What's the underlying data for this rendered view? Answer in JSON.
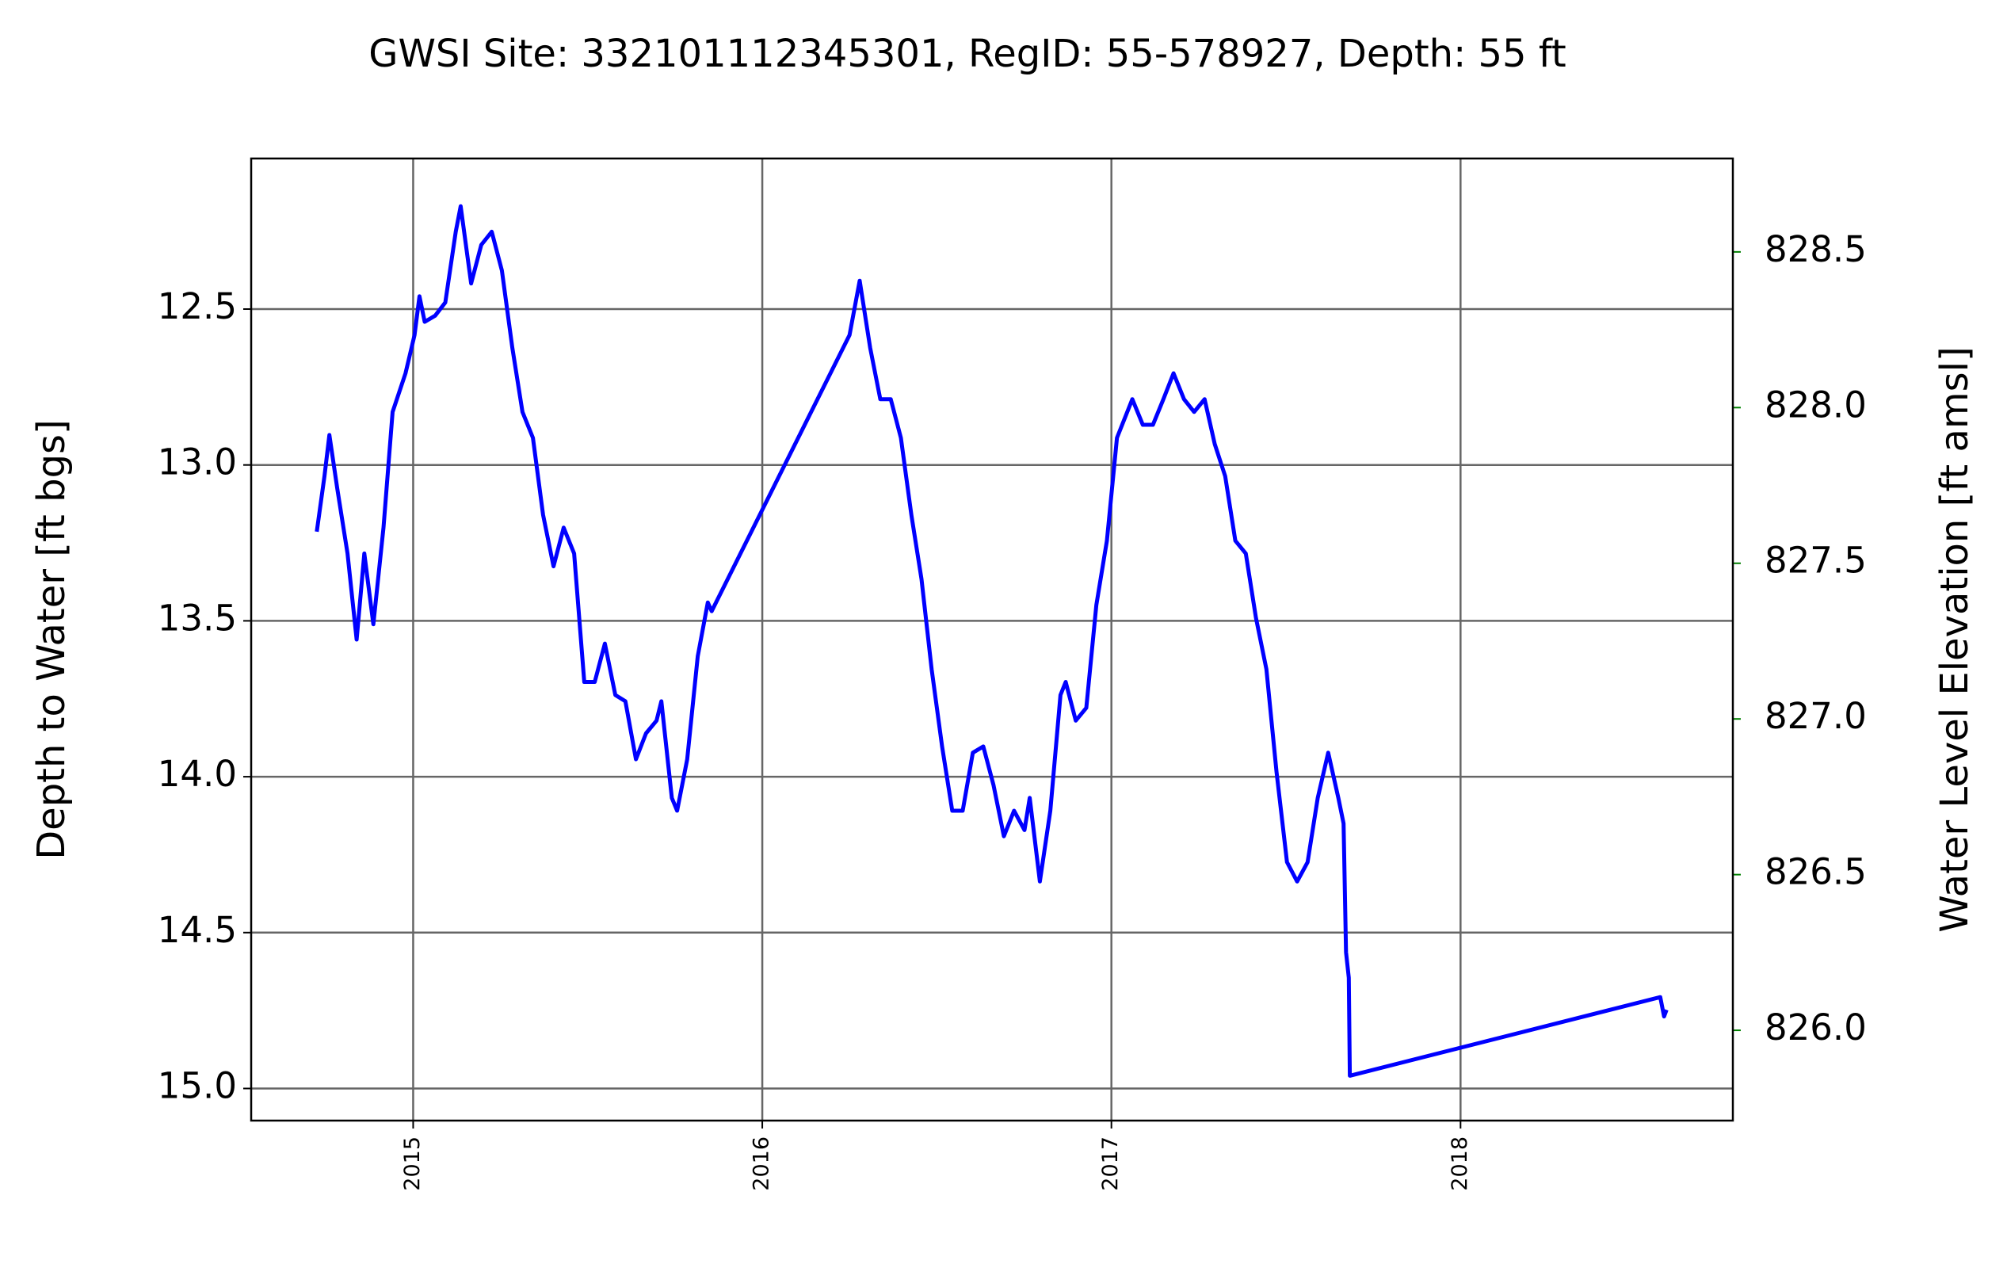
{
  "chart_data": {
    "type": "line",
    "title": "GWSI Site: 332101112345301, RegID: 55-578927, Depth: 55 ft",
    "y_label": "Depth to Water [ft bgs]",
    "y2_label": "Water Level Elevation [ft amsl]",
    "y2_color": "#008000",
    "grid": true,
    "y_inverted": true,
    "xlim": [
      2014.536,
      2018.78
    ],
    "xticks": [
      2015,
      2016,
      2017,
      2018
    ],
    "ylim": [
      15.103,
      12.017
    ],
    "yticks": [
      12.5,
      {
        "value": 13.0,
        "label": "13.0"
      },
      13.5,
      {
        "value": 14.0,
        "label": "14.0"
      },
      14.5,
      {
        "value": 15.0,
        "label": "15.0"
      }
    ],
    "y2lim": [
      825.71,
      828.8
    ],
    "y2ticks": [
      {
        "value": 826.0,
        "label": "826.0"
      },
      826.5,
      {
        "value": 827.0,
        "label": "827.0"
      },
      827.5,
      {
        "value": 828.0,
        "label": "828.0"
      },
      828.5
    ],
    "series": [
      {
        "color": "#0000ff",
        "x": [
          2014.724,
          2014.746,
          2014.76,
          2014.783,
          2014.812,
          2014.838,
          2014.86,
          2014.886,
          2014.915,
          2014.941,
          2014.978,
          2015.004,
          2015.018,
          2015.033,
          2015.063,
          2015.092,
          2015.122,
          2015.136,
          2015.166,
          2015.195,
          2015.225,
          2015.254,
          2015.284,
          2015.313,
          2015.343,
          2015.372,
          2015.402,
          2015.431,
          2015.461,
          2015.49,
          2015.52,
          2015.549,
          2015.579,
          2015.608,
          2015.638,
          2015.667,
          2015.697,
          2015.711,
          2015.741,
          2015.756,
          2015.785,
          2015.815,
          2015.844,
          2015.855,
          2016.25,
          2016.279,
          2016.309,
          2016.338,
          2016.368,
          2016.397,
          2016.427,
          2016.456,
          2016.485,
          2016.515,
          2016.544,
          2016.574,
          2016.603,
          2016.633,
          2016.662,
          2016.692,
          2016.721,
          2016.751,
          2016.766,
          2016.795,
          2016.825,
          2016.854,
          2016.869,
          2016.898,
          2016.928,
          2016.957,
          2016.987,
          2017.016,
          2017.06,
          2017.09,
          2017.119,
          2017.149,
          2017.178,
          2017.208,
          2017.237,
          2017.267,
          2017.296,
          2017.326,
          2017.355,
          2017.385,
          2017.414,
          2017.444,
          2017.473,
          2017.503,
          2017.532,
          2017.562,
          2017.591,
          2017.621,
          2017.65,
          2017.665,
          2017.672,
          2017.68,
          2017.683,
          2018.572,
          2018.583,
          2018.59
        ],
        "values": [
          13.214,
          13.036,
          12.904,
          13.078,
          13.284,
          13.56,
          13.284,
          13.511,
          13.201,
          12.83,
          12.706,
          12.583,
          12.459,
          12.541,
          12.521,
          12.479,
          12.252,
          12.17,
          12.418,
          12.294,
          12.252,
          12.376,
          12.624,
          12.83,
          12.913,
          13.16,
          13.325,
          13.201,
          13.284,
          13.696,
          13.696,
          13.573,
          13.738,
          13.758,
          13.944,
          13.861,
          13.82,
          13.758,
          14.068,
          14.109,
          13.944,
          13.614,
          13.441,
          13.469,
          12.583,
          12.409,
          12.624,
          12.789,
          12.789,
          12.913,
          13.16,
          13.366,
          13.655,
          13.903,
          14.109,
          14.109,
          13.923,
          13.903,
          14.026,
          14.191,
          14.109,
          14.171,
          14.068,
          14.336,
          14.109,
          13.738,
          13.696,
          13.82,
          13.779,
          13.449,
          13.243,
          12.913,
          12.789,
          12.871,
          12.871,
          12.789,
          12.706,
          12.789,
          12.83,
          12.789,
          12.933,
          13.036,
          13.243,
          13.284,
          13.49,
          13.655,
          13.985,
          14.274,
          14.336,
          14.274,
          14.068,
          13.923,
          14.068,
          14.15,
          14.563,
          14.645,
          14.959,
          14.707,
          14.769,
          14.748
        ]
      }
    ]
  }
}
